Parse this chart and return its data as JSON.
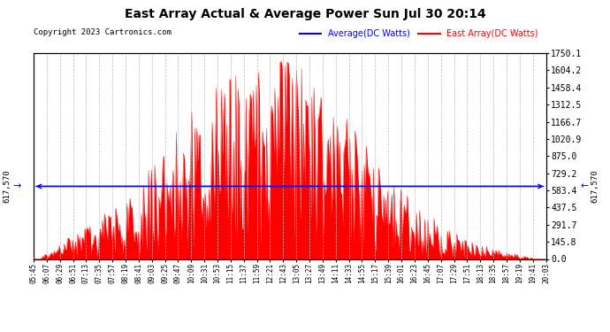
{
  "title": "East Array Actual & Average Power Sun Jul 30 20:14",
  "copyright": "Copyright 2023 Cartronics.com",
  "legend_avg": "Average(DC Watts)",
  "legend_east": "East Array(DC Watts)",
  "avg_label": "617,570",
  "right_yticks": [
    0.0,
    145.8,
    291.7,
    437.5,
    583.4,
    729.2,
    875.0,
    1020.9,
    1166.7,
    1312.5,
    1458.4,
    1604.2,
    1750.1
  ],
  "ymax": 1750.1,
  "ymin": 0.0,
  "avg_line_y": 617.57,
  "bg_color": "#ffffff",
  "fill_color": "#ff0000",
  "avg_line_color": "#0000ff",
  "east_line_color": "#ff0000",
  "grid_color": "#bbbbbb",
  "title_color": "#000000",
  "copyright_color": "#000000",
  "legend_avg_color": "#0000ff",
  "legend_east_color": "#ff0000",
  "xtick_labels": [
    "05:45",
    "06:07",
    "06:29",
    "06:51",
    "07:13",
    "07:35",
    "07:57",
    "08:19",
    "08:41",
    "09:03",
    "09:25",
    "09:47",
    "10:09",
    "10:31",
    "10:53",
    "11:15",
    "11:37",
    "11:59",
    "12:21",
    "12:43",
    "13:05",
    "13:27",
    "13:49",
    "14:11",
    "14:33",
    "14:55",
    "15:17",
    "15:39",
    "16:01",
    "16:23",
    "16:45",
    "17:07",
    "17:29",
    "17:51",
    "18:13",
    "18:35",
    "18:57",
    "19:19",
    "19:41",
    "20:03"
  ],
  "n_points": 500
}
